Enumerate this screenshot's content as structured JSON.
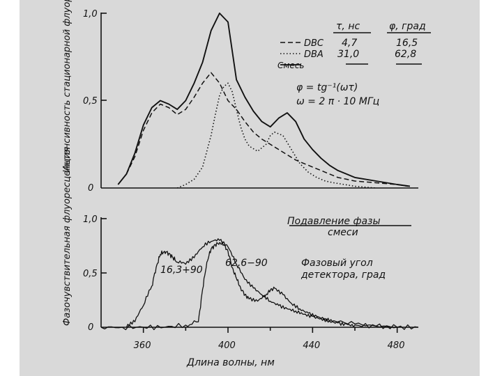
{
  "colors": {
    "ink": "#111111",
    "paper": "#d9d9d9"
  },
  "chart_data": [
    {
      "type": "line",
      "ylabel": "Интенсивность стационарной флуоресценции",
      "xlim": [
        340,
        490
      ],
      "ylim": [
        0,
        1.0
      ],
      "yticks": [
        "1,0",
        "0,5",
        "0"
      ],
      "legend": {
        "headers": [
          "τ, нс",
          "φ, град"
        ],
        "rows": [
          {
            "name": "DBC",
            "tau": "4,7",
            "phi": "16,5"
          },
          {
            "name": "DBA",
            "tau": "31,0",
            "phi": "62,8"
          },
          {
            "name": "Смесь",
            "tau": "",
            "phi": ""
          }
        ]
      },
      "formula_1": "φ = tg⁻¹(ωτ)",
      "formula_2": "ω = 2 π · 10 МГц",
      "series": [
        {
          "name": "DBC",
          "x": [
            352,
            356,
            360,
            364,
            368,
            372,
            376,
            380,
            384,
            388,
            392,
            396,
            400,
            404,
            408,
            412,
            416,
            420,
            424,
            428,
            432,
            436,
            440,
            444,
            448,
            452,
            456,
            460,
            470,
            480,
            485
          ],
          "y": [
            0.08,
            0.18,
            0.33,
            0.43,
            0.48,
            0.46,
            0.42,
            0.45,
            0.52,
            0.6,
            0.66,
            0.6,
            0.5,
            0.45,
            0.38,
            0.32,
            0.28,
            0.25,
            0.22,
            0.19,
            0.16,
            0.14,
            0.12,
            0.1,
            0.08,
            0.06,
            0.05,
            0.04,
            0.03,
            0.02,
            0.01
          ]
        },
        {
          "name": "DBA",
          "x": [
            376,
            380,
            384,
            388,
            392,
            394,
            396,
            398,
            400,
            402,
            404,
            406,
            408,
            410,
            414,
            418,
            420,
            422,
            426,
            430,
            434,
            438,
            442,
            446,
            450,
            460,
            470
          ],
          "y": [
            0.0,
            0.02,
            0.05,
            0.12,
            0.3,
            0.42,
            0.53,
            0.58,
            0.6,
            0.55,
            0.45,
            0.35,
            0.28,
            0.24,
            0.21,
            0.25,
            0.3,
            0.32,
            0.3,
            0.22,
            0.14,
            0.09,
            0.06,
            0.04,
            0.03,
            0.01,
            0.0
          ]
        },
        {
          "name": "Смесь",
          "x": [
            348,
            352,
            356,
            360,
            364,
            368,
            372,
            376,
            380,
            384,
            388,
            392,
            396,
            400,
            404,
            408,
            412,
            416,
            420,
            424,
            428,
            432,
            436,
            440,
            444,
            448,
            452,
            456,
            460,
            470,
            480,
            486
          ],
          "y": [
            0.02,
            0.08,
            0.2,
            0.36,
            0.46,
            0.5,
            0.48,
            0.45,
            0.5,
            0.6,
            0.72,
            0.9,
            1.0,
            0.95,
            0.62,
            0.52,
            0.44,
            0.38,
            0.35,
            0.4,
            0.43,
            0.38,
            0.28,
            0.22,
            0.17,
            0.13,
            0.1,
            0.08,
            0.06,
            0.04,
            0.02,
            0.01
          ]
        }
      ]
    },
    {
      "type": "line",
      "ylabel": "Фазочувствительная флуоресценция",
      "xlabel": "Длина волны, нм",
      "xlim": [
        340,
        490
      ],
      "ylim": [
        0,
        1.0
      ],
      "xticks": [
        360,
        400,
        440,
        480
      ],
      "yticks": [
        "1,0",
        "0,5",
        "0"
      ],
      "annotations": {
        "title_1": "Подавление фазы",
        "title_2": "смеси",
        "label_a": "16,3+90",
        "label_b": "62,6−90",
        "note_1": "Фазовый угол",
        "note_2": "детектора, град"
      },
      "series": [
        {
          "name": "16,3+90",
          "x": [
            352,
            356,
            360,
            364,
            366,
            368,
            370,
            372,
            374,
            376,
            380,
            384,
            388,
            392,
            396,
            400,
            404,
            408,
            412,
            416,
            420,
            424,
            428,
            432,
            436,
            440,
            444,
            448,
            452,
            456,
            460,
            470,
            480
          ],
          "y": [
            0.0,
            0.05,
            0.2,
            0.38,
            0.55,
            0.67,
            0.7,
            0.68,
            0.64,
            0.6,
            0.58,
            0.64,
            0.74,
            0.79,
            0.8,
            0.74,
            0.58,
            0.44,
            0.36,
            0.3,
            0.24,
            0.2,
            0.17,
            0.15,
            0.12,
            0.1,
            0.08,
            0.06,
            0.04,
            0.03,
            0.02,
            0.01,
            0.0
          ]
        },
        {
          "name": "62,6−90",
          "x": [
            340,
            350,
            360,
            370,
            380,
            386,
            388,
            390,
            392,
            394,
            396,
            398,
            400,
            402,
            404,
            406,
            408,
            410,
            414,
            418,
            420,
            422,
            426,
            430,
            434,
            438,
            442,
            446,
            450,
            460,
            470,
            480,
            490
          ],
          "y": [
            0.0,
            0.0,
            0.0,
            0.0,
            0.02,
            0.05,
            0.35,
            0.6,
            0.72,
            0.76,
            0.78,
            0.76,
            0.7,
            0.55,
            0.45,
            0.36,
            0.3,
            0.26,
            0.24,
            0.3,
            0.34,
            0.36,
            0.3,
            0.22,
            0.17,
            0.13,
            0.1,
            0.08,
            0.06,
            0.03,
            0.01,
            0.0,
            0.0
          ]
        }
      ]
    }
  ]
}
